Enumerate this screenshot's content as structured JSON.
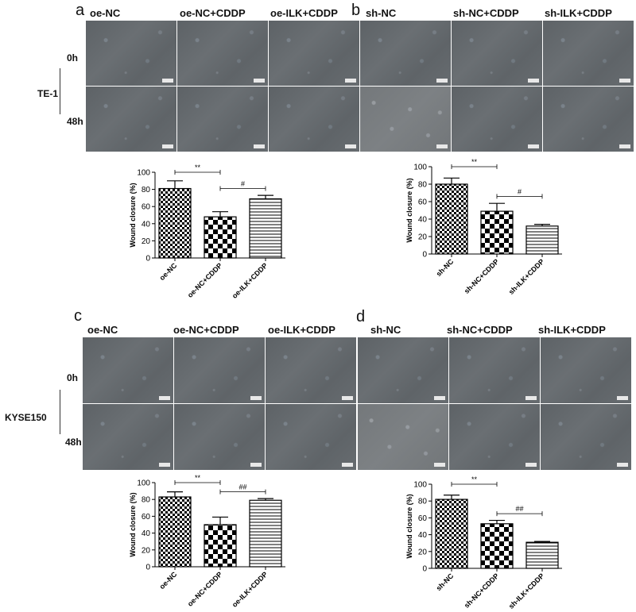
{
  "panels": [
    {
      "letter": "a",
      "cell_line": "TE-1",
      "column_labels": [
        "oe-NC",
        "oe-NC+CDDP",
        "oe-ILK+CDDP"
      ],
      "row_labels": [
        "0h",
        "48h"
      ]
    },
    {
      "letter": "b",
      "column_labels": [
        "sh-NC",
        "sh-NC+CDDP",
        "sh-ILK+CDDP"
      ]
    },
    {
      "letter": "c",
      "cell_line": "KYSE150",
      "column_labels": [
        "oe-NC",
        "oe-NC+CDDP",
        "oe-ILK+CDDP"
      ],
      "row_labels": [
        "0h",
        "48h"
      ]
    },
    {
      "letter": "d",
      "column_labels": [
        "sh-NC",
        "sh-NC+CDDP",
        "sh-ILK+CDDP"
      ]
    }
  ],
  "colors": {
    "bar_fill": "#ffffff",
    "bar_stroke": "#000000",
    "pattern": "#000000"
  },
  "chart_data": [
    {
      "panel": "a",
      "type": "bar",
      "categories": [
        "oe-NC",
        "oe-NC+CDDP",
        "oe-ILK+CDDP"
      ],
      "values": [
        81,
        48,
        69
      ],
      "errors": [
        9,
        6,
        4
      ],
      "patterns": [
        "checker",
        "checker-large",
        "horizontal-lines"
      ],
      "ylabel": "Wound closure (%)",
      "ylim": [
        0,
        100
      ],
      "yticks": [
        0,
        20,
        40,
        60,
        80,
        100
      ],
      "annotations": [
        {
          "text": "**",
          "from": 0,
          "to": 1
        },
        {
          "text": "#",
          "from": 1,
          "to": 2
        }
      ]
    },
    {
      "panel": "b",
      "type": "bar",
      "categories": [
        "sh-NC",
        "sh-NC+CDDP",
        "sh-ILK+CDDP"
      ],
      "values": [
        80,
        49,
        32
      ],
      "errors": [
        7,
        9,
        2
      ],
      "patterns": [
        "checker",
        "checker-large",
        "horizontal-lines"
      ],
      "ylabel": "Wound closure (%)",
      "ylim": [
        0,
        100
      ],
      "yticks": [
        0,
        20,
        40,
        60,
        80,
        100
      ],
      "annotations": [
        {
          "text": "**",
          "from": 0,
          "to": 1
        },
        {
          "text": "#",
          "from": 1,
          "to": 2
        }
      ]
    },
    {
      "panel": "c",
      "type": "bar",
      "categories": [
        "oe-NC",
        "oe-NC+CDDP",
        "oe-ILK+CDDP"
      ],
      "values": [
        83,
        50,
        79
      ],
      "errors": [
        6,
        9,
        2
      ],
      "patterns": [
        "checker",
        "checker-large",
        "horizontal-lines"
      ],
      "ylabel": "Wound closure (%)",
      "ylim": [
        0,
        100
      ],
      "yticks": [
        0,
        20,
        40,
        60,
        80,
        100
      ],
      "annotations": [
        {
          "text": "**",
          "from": 0,
          "to": 1
        },
        {
          "text": "##",
          "from": 1,
          "to": 2
        }
      ]
    },
    {
      "panel": "d",
      "type": "bar",
      "categories": [
        "sh-NC",
        "sh-NC+CDDP",
        "sh-ILK+CDDP"
      ],
      "values": [
        82,
        53,
        31
      ],
      "errors": [
        5,
        4,
        1
      ],
      "patterns": [
        "checker",
        "checker-large",
        "horizontal-lines"
      ],
      "ylabel": "Wound closure (%)",
      "ylim": [
        0,
        100
      ],
      "yticks": [
        0,
        20,
        40,
        60,
        80,
        100
      ],
      "annotations": [
        {
          "text": "**",
          "from": 0,
          "to": 1
        },
        {
          "text": "##",
          "from": 1,
          "to": 2
        }
      ]
    }
  ]
}
